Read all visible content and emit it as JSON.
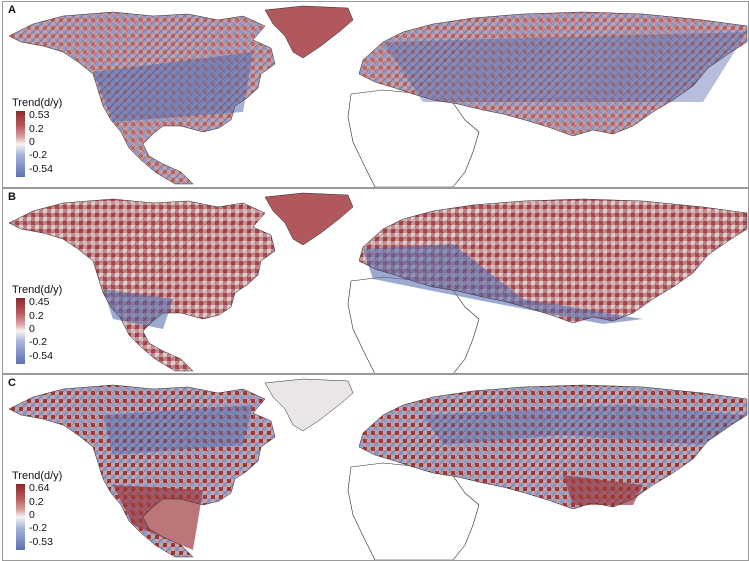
{
  "panels": [
    {
      "letter": "A",
      "legend": {
        "title": "Trend(d/y)",
        "max": "0.53",
        "upper": "0.2",
        "mid": "0",
        "lower": "-0.2",
        "min": "-0.54"
      }
    },
    {
      "letter": "B",
      "legend": {
        "title": "Trend(d/y)",
        "max": "0.45",
        "upper": "0.2",
        "mid": "0",
        "lower": "-0.2",
        "min": "-0.54"
      }
    },
    {
      "letter": "C",
      "legend": {
        "title": "Trend(d/y)",
        "max": "0.64",
        "upper": "0.2",
        "mid": "0",
        "lower": "-0.2",
        "min": "-0.53"
      }
    }
  ],
  "colors": {
    "positive": "#a8464a",
    "neutral": "#f4f2f2",
    "negative": "#5a6fb2",
    "border": "#2a2a2a"
  }
}
